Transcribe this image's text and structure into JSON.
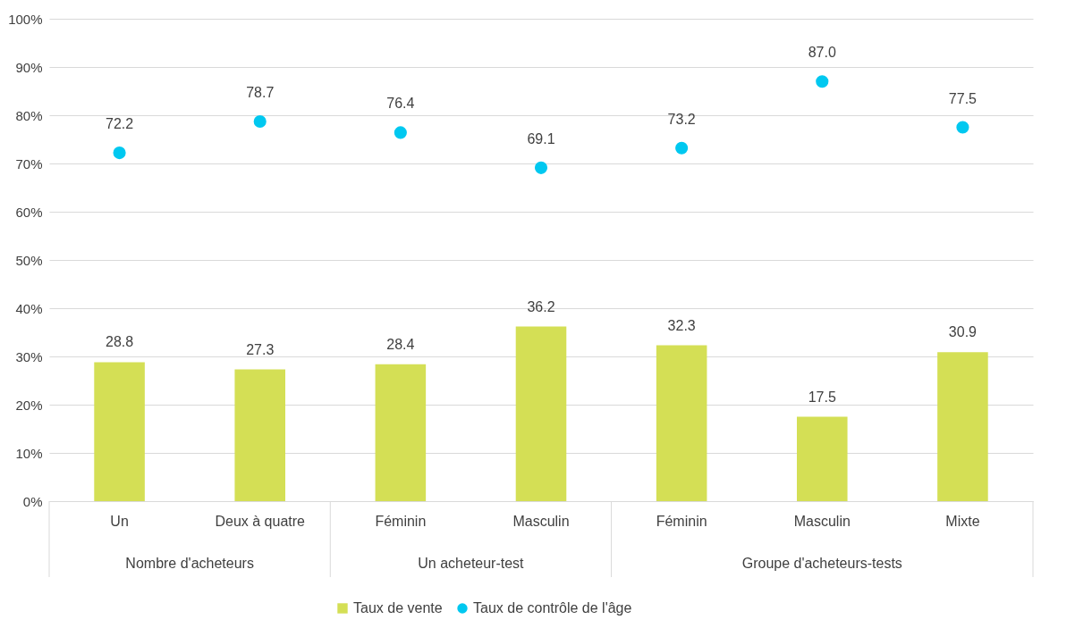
{
  "chart_data": {
    "type": "bar",
    "categories": [
      "Un",
      "Deux à quatre",
      "Féminin",
      "Masculin",
      "Féminin",
      "Masculin",
      "Mixte"
    ],
    "series": [
      {
        "name": "Taux de vente",
        "color": "#d4df55",
        "values": [
          28.8,
          27.3,
          28.4,
          36.2,
          32.3,
          17.5,
          30.9
        ],
        "value_labels": [
          "28.8",
          "27.3",
          "28.4",
          "36.2",
          "32.3",
          "17.5",
          "30.9"
        ]
      },
      {
        "name": "Taux de contrôle de l'âge",
        "type": "scatter",
        "color": "#00c8f0",
        "values": [
          72.2,
          78.7,
          76.4,
          69.1,
          73.2,
          87.0,
          77.5
        ],
        "value_labels": [
          "72.2",
          "78.7",
          "76.4",
          "69.1",
          "73.2",
          "87.0",
          "77.5"
        ]
      }
    ],
    "annotations": [
      "Nombre d'acheteurs",
      "Un acheteur-test",
      "Groupe d'acheteurs-tests"
    ],
    "ylim": [
      0,
      100
    ],
    "yticks": [
      {
        "value": 0,
        "label": "0%"
      },
      {
        "value": 10,
        "label": "10%"
      },
      {
        "value": 20,
        "label": "20%"
      },
      {
        "value": 30,
        "label": "30%"
      },
      {
        "value": 40,
        "label": "40%"
      },
      {
        "value": 50,
        "label": "50%"
      },
      {
        "value": 60,
        "label": "60%"
      },
      {
        "value": 70,
        "label": "70%"
      },
      {
        "value": 80,
        "label": "80%"
      },
      {
        "value": 90,
        "label": "90%"
      },
      {
        "value": 100,
        "label": "100%"
      }
    ],
    "grid": "y",
    "legend": "bottom",
    "marker": "circle"
  }
}
